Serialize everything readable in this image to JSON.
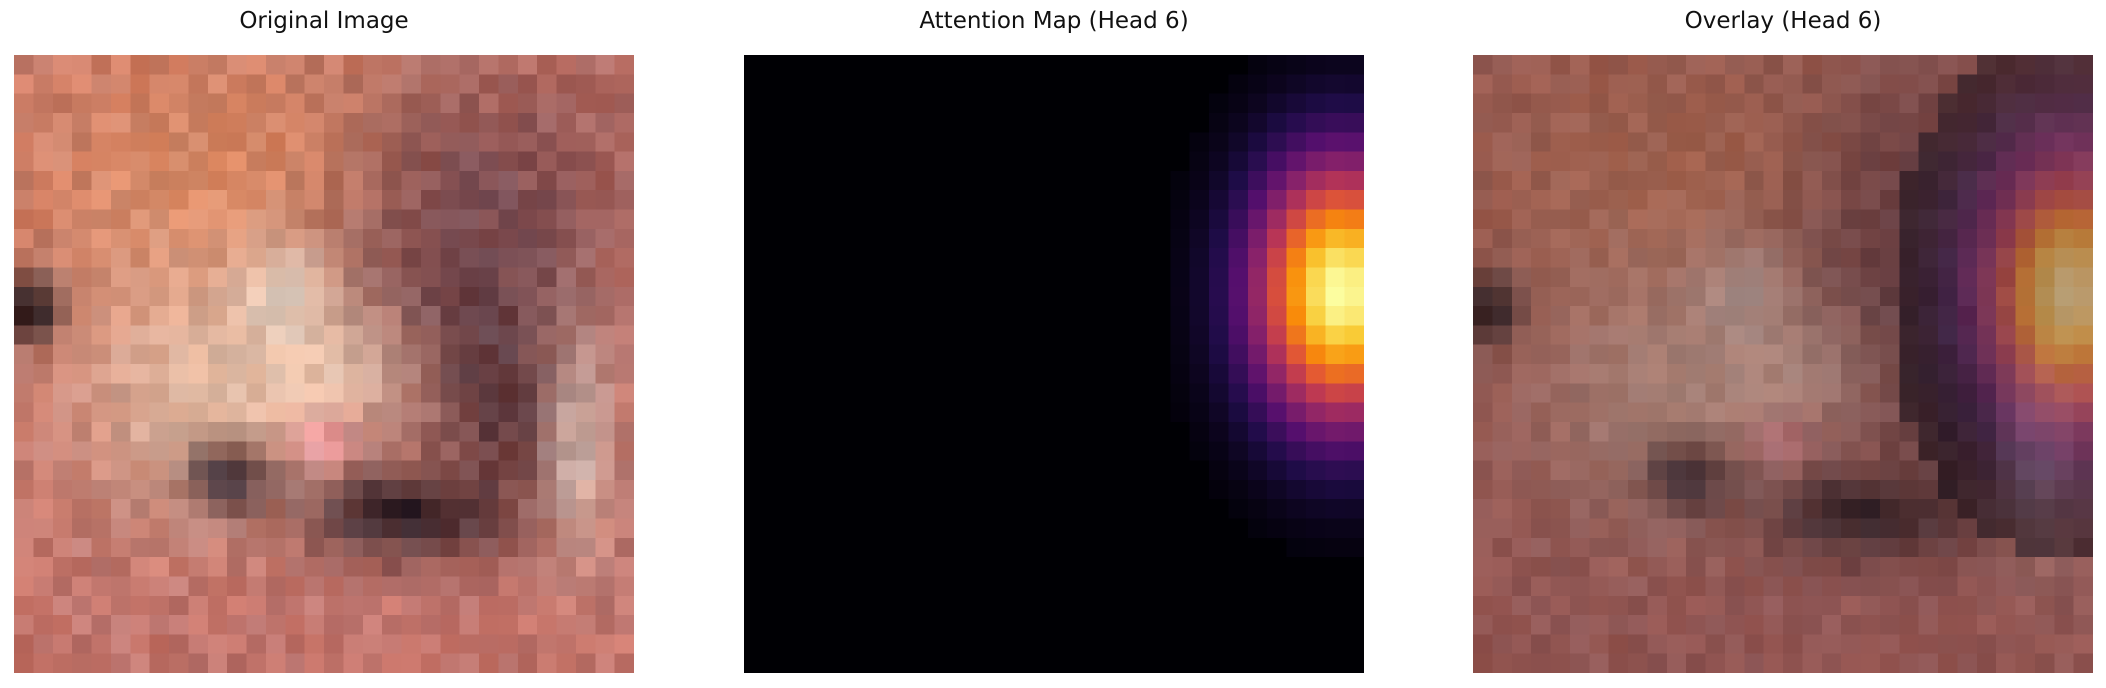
{
  "panels": [
    {
      "title": "Original Image",
      "kind": "original"
    },
    {
      "title": "Attention Map (Head 6)",
      "kind": "attention",
      "colormap": "inferno"
    },
    {
      "title": "Overlay (Head 6)",
      "kind": "overlay"
    }
  ],
  "colors": {
    "background": "#ffffff",
    "attention_background": "#000004",
    "title_text": "#111111"
  }
}
